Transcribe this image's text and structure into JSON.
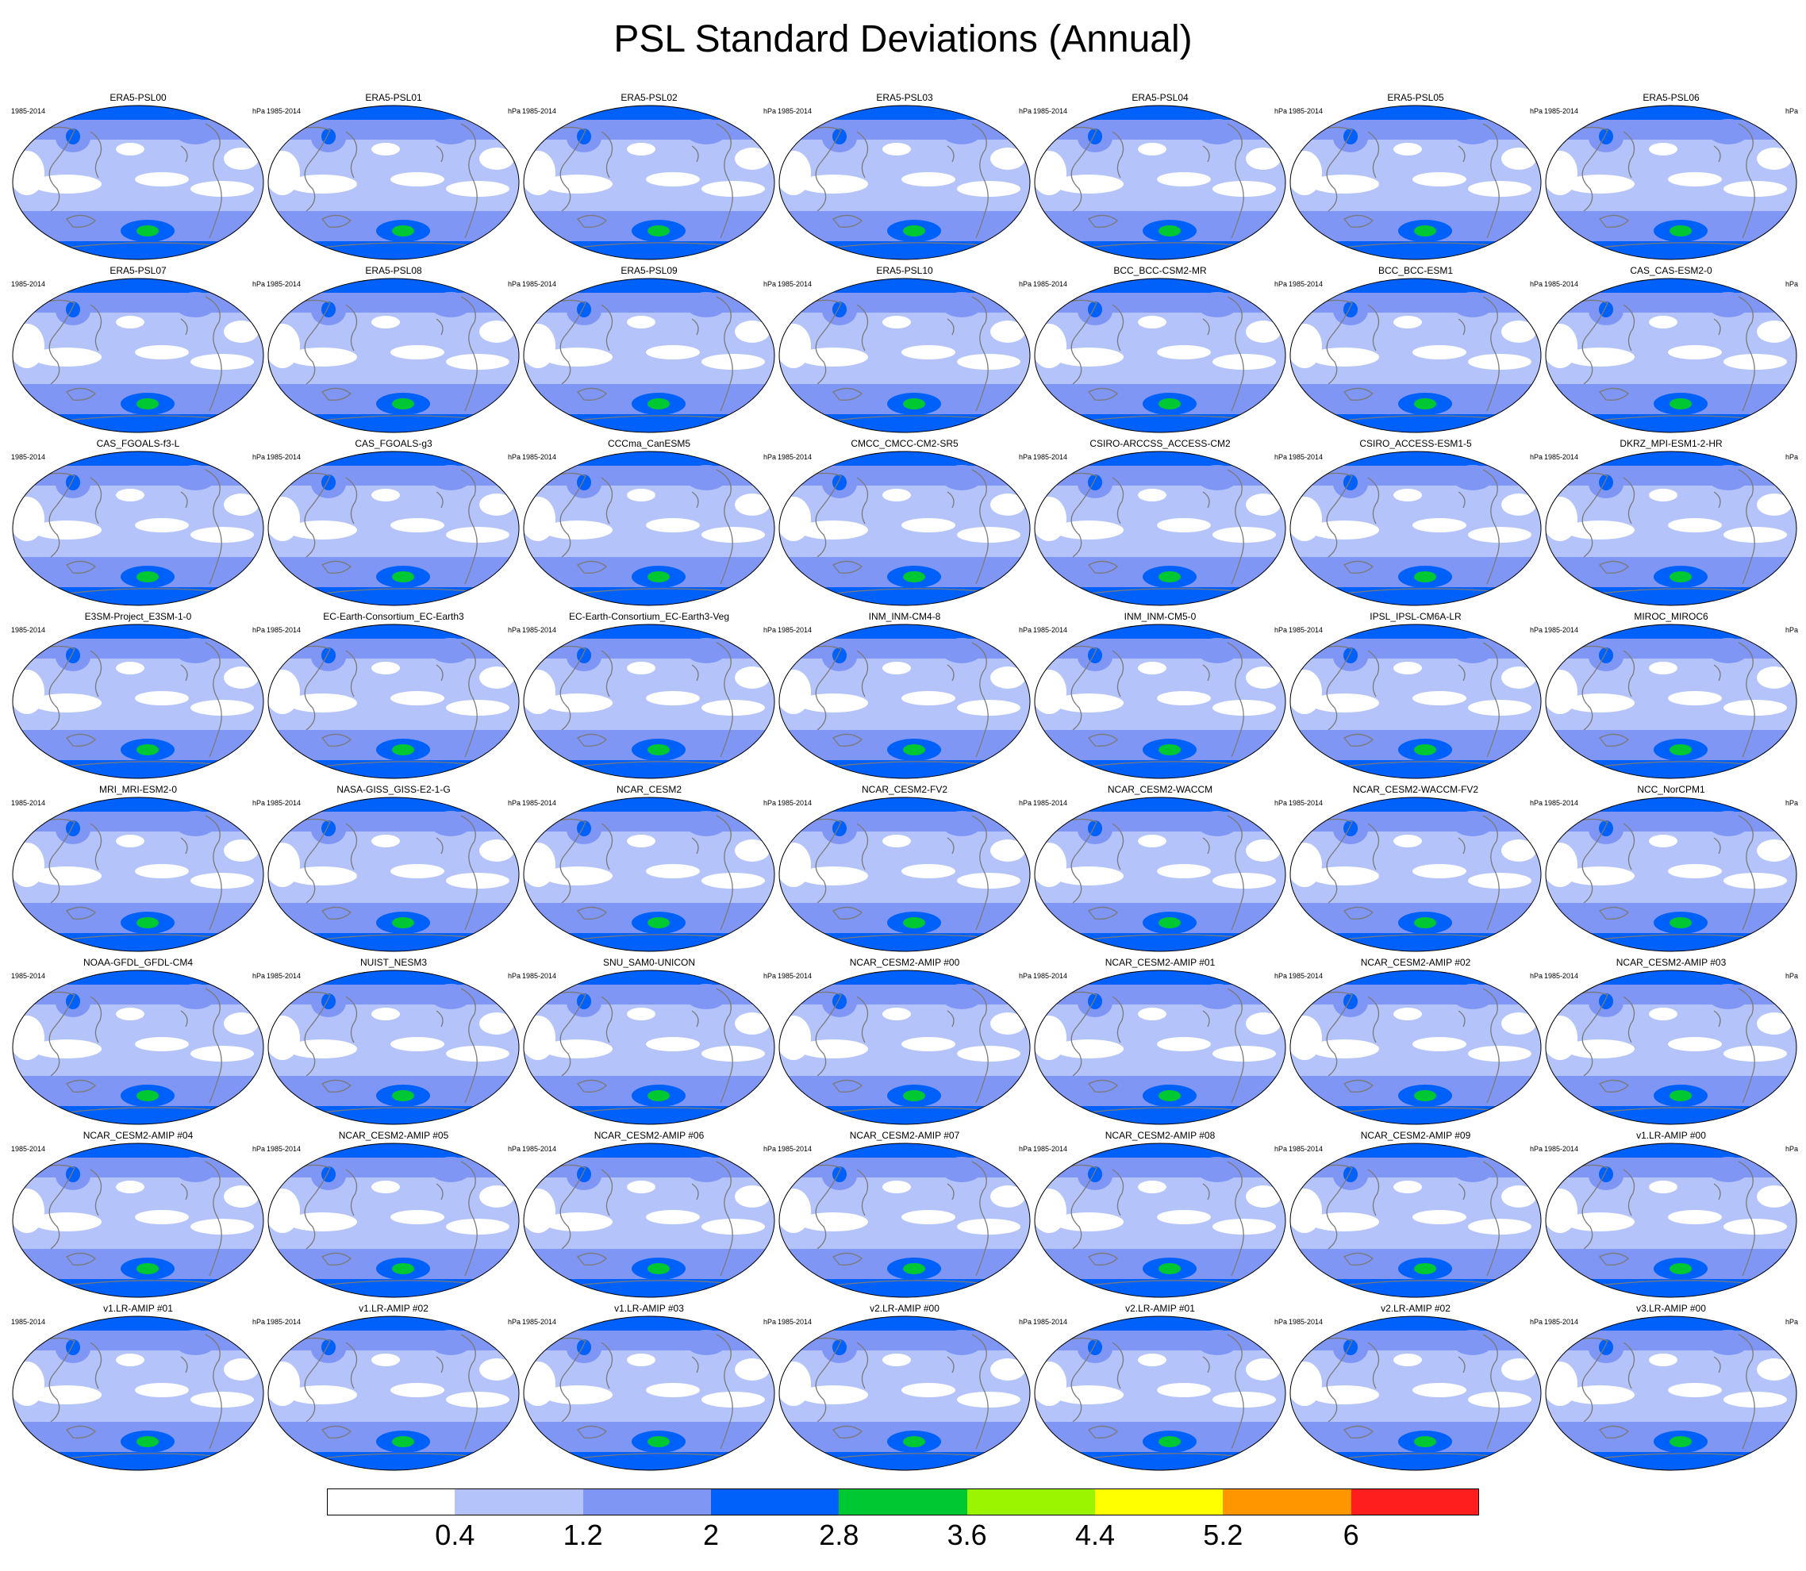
{
  "title": "PSL Standard Deviations (Annual)",
  "panel_period": "1985-2014",
  "panel_units": "hPa",
  "panels": [
    "ERA5-PSL00",
    "ERA5-PSL01",
    "ERA5-PSL02",
    "ERA5-PSL03",
    "ERA5-PSL04",
    "ERA5-PSL05",
    "ERA5-PSL06",
    "ERA5-PSL07",
    "ERA5-PSL08",
    "ERA5-PSL09",
    "ERA5-PSL10",
    "BCC_BCC-CSM2-MR",
    "BCC_BCC-ESM1",
    "CAS_CAS-ESM2-0",
    "CAS_FGOALS-f3-L",
    "CAS_FGOALS-g3",
    "CCCma_CanESM5",
    "CMCC_CMCC-CM2-SR5",
    "CSIRO-ARCCSS_ACCESS-CM2",
    "CSIRO_ACCESS-ESM1-5",
    "DKRZ_MPI-ESM1-2-HR",
    "E3SM-Project_E3SM-1-0",
    "EC-Earth-Consortium_EC-Earth3",
    "EC-Earth-Consortium_EC-Earth3-Veg",
    "INM_INM-CM4-8",
    "INM_INM-CM5-0",
    "IPSL_IPSL-CM6A-LR",
    "MIROC_MIROC6",
    "MRI_MRI-ESM2-0",
    "NASA-GISS_GISS-E2-1-G",
    "NCAR_CESM2",
    "NCAR_CESM2-FV2",
    "NCAR_CESM2-WACCM",
    "NCAR_CESM2-WACCM-FV2",
    "NCC_NorCPM1",
    "NOAA-GFDL_GFDL-CM4",
    "NUIST_NESM3",
    "SNU_SAM0-UNICON",
    "NCAR_CESM2-AMIP  #00",
    "NCAR_CESM2-AMIP  #01",
    "NCAR_CESM2-AMIP  #02",
    "NCAR_CESM2-AMIP  #03",
    "NCAR_CESM2-AMIP  #04",
    "NCAR_CESM2-AMIP  #05",
    "NCAR_CESM2-AMIP  #06",
    "NCAR_CESM2-AMIP  #07",
    "NCAR_CESM2-AMIP  #08",
    "NCAR_CESM2-AMIP  #09",
    "v1.LR-AMIP  #00",
    "v1.LR-AMIP  #01",
    "v1.LR-AMIP  #02",
    "v1.LR-AMIP  #03",
    "v2.LR-AMIP  #00",
    "v2.LR-AMIP  #01",
    "v2.LR-AMIP  #02",
    "v3.LR-AMIP  #00"
  ],
  "colorbar": {
    "colors": [
      "#ffffff",
      "#b4c3fa",
      "#8096f5",
      "#0060fa",
      "#00c832",
      "#9bf500",
      "#ffff00",
      "#ff9600",
      "#ff1e1e"
    ],
    "labels": [
      "0.4",
      "1.2",
      "2",
      "2.8",
      "3.6",
      "4.4",
      "5.2",
      "6"
    ]
  },
  "map_colors": {
    "land_outline": "#7a7a7a",
    "border": "#000000"
  }
}
